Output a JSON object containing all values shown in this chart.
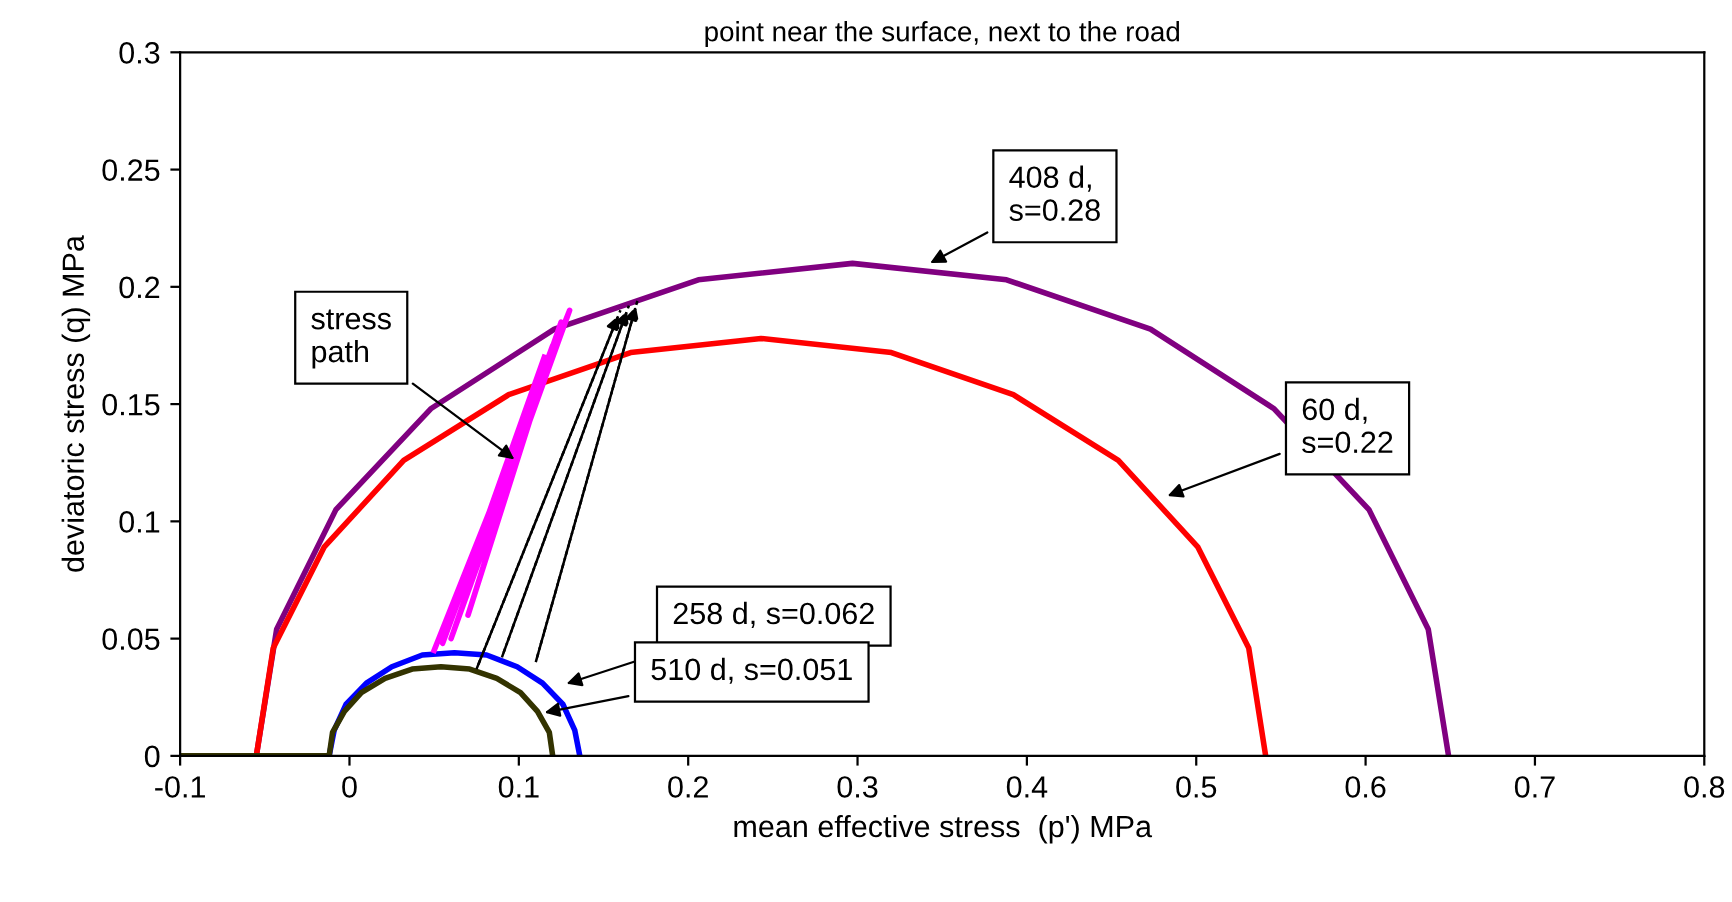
{
  "chart_data": {
    "type": "line",
    "title": "point near the surface, next to the road",
    "xlabel": "mean effective stress  (p') MPa",
    "ylabel": "deviatoric stress (q) MPa",
    "xlim": [
      -0.1,
      0.8
    ],
    "xticks": [
      -0.1,
      0,
      0.1,
      0.2,
      0.3,
      0.4,
      0.5,
      0.6,
      0.7,
      0.8
    ],
    "ylim": [
      0,
      0.3
    ],
    "yticks": [
      0,
      0.05,
      0.1,
      0.15,
      0.2,
      0.25,
      0.3
    ],
    "grid": false,
    "legend": false,
    "marker": "none",
    "series": [
      {
        "color": "#800080",
        "x": [
          -0.1,
          -0.055,
          -0.043,
          -0.008,
          0.048,
          0.121,
          0.206,
          0.297,
          0.388,
          0.473,
          0.546,
          0.602,
          0.637,
          0.649
        ],
        "values": [
          0,
          0,
          0.054,
          0.105,
          0.148,
          0.182,
          0.203,
          0.21,
          0.203,
          0.182,
          0.148,
          0.105,
          0.054,
          0
        ]
      },
      {
        "color": "#ff0000",
        "x": [
          -0.055,
          -0.045,
          -0.015,
          0.032,
          0.094,
          0.166,
          0.243,
          0.32,
          0.392,
          0.454,
          0.501,
          0.531,
          0.541
        ],
        "values": [
          0,
          0.046,
          0.089,
          0.126,
          0.154,
          0.172,
          0.178,
          0.172,
          0.154,
          0.126,
          0.089,
          0.046,
          0
        ]
      },
      {
        "color": "#0000ff",
        "x": [
          -0.012,
          -0.009,
          -0.002,
          0.01,
          0.025,
          0.043,
          0.062,
          0.081,
          0.099,
          0.114,
          0.126,
          0.133,
          0.136
        ],
        "values": [
          0,
          0.011,
          0.022,
          0.031,
          0.038,
          0.043,
          0.044,
          0.043,
          0.038,
          0.031,
          0.022,
          0.011,
          0
        ]
      },
      {
        "color": "#333300",
        "x": [
          -0.1,
          -0.012,
          -0.01,
          -0.003,
          0.007,
          0.021,
          0.037,
          0.054,
          0.071,
          0.087,
          0.101,
          0.111,
          0.118,
          0.12
        ],
        "values": [
          0,
          0,
          0.01,
          0.019,
          0.027,
          0.033,
          0.037,
          0.038,
          0.037,
          0.033,
          0.027,
          0.019,
          0.01,
          0
        ]
      },
      {
        "color": "#ff00ff",
        "x": [
          0.05,
          0.13,
          0.06,
          0.125,
          0.07,
          0.12,
          0.055,
          0.115
        ],
        "values": [
          0.045,
          0.19,
          0.05,
          0.185,
          0.06,
          0.175,
          0.048,
          0.17
        ]
      },
      {
        "color": "#000000",
        "line_style": "dashed",
        "x": [
          0.075,
          0.16
        ],
        "values": [
          0.037,
          0.19
        ]
      },
      {
        "color": "#000000",
        "line_style": "dashed",
        "x": [
          0.09,
          0.165
        ],
        "values": [
          0.042,
          0.192
        ]
      },
      {
        "color": "#000000",
        "line_style": "dashed",
        "x": [
          0.11,
          0.17
        ],
        "values": [
          0.04,
          0.194
        ]
      }
    ],
    "annotations": [
      {
        "text": "408 d,\ns=0.28",
        "x": 0.34,
        "y": 0.209
      },
      {
        "text": "stress\npath",
        "x": 0.1,
        "y": 0.125
      },
      {
        "text": "60 d,\ns=0.22",
        "x": 0.48,
        "y": 0.11
      },
      {
        "text": "258 d, s=0.062",
        "x": 0.125,
        "y": 0.03
      },
      {
        "text": "510 d, s=0.051",
        "x": 0.112,
        "y": 0.018
      }
    ]
  }
}
